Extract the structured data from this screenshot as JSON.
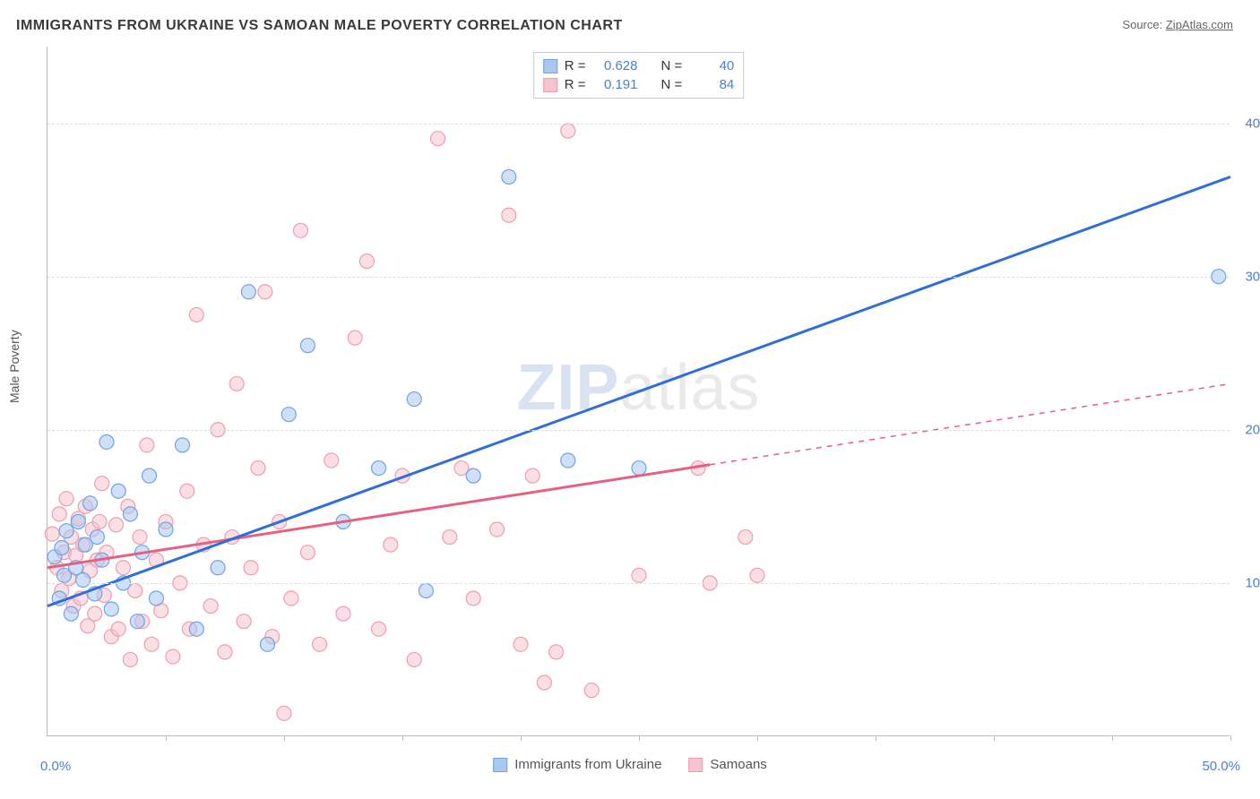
{
  "title": "IMMIGRANTS FROM UKRAINE VS SAMOAN MALE POVERTY CORRELATION CHART",
  "source_label": "Source:",
  "source_name": "ZipAtlas.com",
  "ylabel": "Male Poverty",
  "watermark_zip": "ZIP",
  "watermark_atlas": "atlas",
  "chart": {
    "type": "scatter",
    "xlim": [
      0,
      50
    ],
    "ylim": [
      0,
      45
    ],
    "x_origin_label": "0.0%",
    "x_max_label": "50.0%",
    "y_ticks": [
      {
        "v": 10,
        "label": "10.0%"
      },
      {
        "v": 20,
        "label": "20.0%"
      },
      {
        "v": 30,
        "label": "30.0%"
      },
      {
        "v": 40,
        "label": "40.0%"
      }
    ],
    "x_tick_positions": [
      5,
      10,
      15,
      20,
      25,
      30,
      35,
      40,
      45,
      50
    ],
    "background_color": "#ffffff",
    "grid_color": "#dddddd",
    "axis_color": "#bbbbbb",
    "marker_radius": 8,
    "marker_opacity": 0.55,
    "series": [
      {
        "name": "Immigrants from Ukraine",
        "color_fill": "#a9c7ef",
        "color_stroke": "#6ea3e6",
        "line_color": "#2f6fd6",
        "line_width": 3,
        "R": "0.628",
        "N": "40",
        "trend": {
          "x1": 0,
          "y1": 8.5,
          "x2": 50,
          "y2": 36.5,
          "dashed_from": null
        },
        "points": [
          [
            0.3,
            11.7
          ],
          [
            0.5,
            9.0
          ],
          [
            0.6,
            12.3
          ],
          [
            0.7,
            10.5
          ],
          [
            0.8,
            13.4
          ],
          [
            1.0,
            8.0
          ],
          [
            1.2,
            11.0
          ],
          [
            1.3,
            14.0
          ],
          [
            1.5,
            10.2
          ],
          [
            1.6,
            12.5
          ],
          [
            1.8,
            15.2
          ],
          [
            2.0,
            9.3
          ],
          [
            2.1,
            13.0
          ],
          [
            2.3,
            11.5
          ],
          [
            2.5,
            19.2
          ],
          [
            2.7,
            8.3
          ],
          [
            3.0,
            16.0
          ],
          [
            3.2,
            10.0
          ],
          [
            3.5,
            14.5
          ],
          [
            3.8,
            7.5
          ],
          [
            4.0,
            12.0
          ],
          [
            4.3,
            17.0
          ],
          [
            4.6,
            9.0
          ],
          [
            5.0,
            13.5
          ],
          [
            5.7,
            19.0
          ],
          [
            6.3,
            7.0
          ],
          [
            7.2,
            11.0
          ],
          [
            8.5,
            29.0
          ],
          [
            9.3,
            6.0
          ],
          [
            10.2,
            21.0
          ],
          [
            11.0,
            25.5
          ],
          [
            12.5,
            14.0
          ],
          [
            14.0,
            17.5
          ],
          [
            15.5,
            22.0
          ],
          [
            16.0,
            9.5
          ],
          [
            18.0,
            17.0
          ],
          [
            19.5,
            36.5
          ],
          [
            22.0,
            18.0
          ],
          [
            25.0,
            17.5
          ],
          [
            49.5,
            30.0
          ]
        ]
      },
      {
        "name": "Samoans",
        "color_fill": "#f6c4ce",
        "color_stroke": "#ef9db0",
        "line_color": "#e75f82",
        "line_width": 3,
        "R": "0.191",
        "N": "84",
        "trend": {
          "x1": 0,
          "y1": 11.0,
          "x2": 50,
          "y2": 23.0,
          "dashed_from": 28
        },
        "points": [
          [
            0.2,
            13.2
          ],
          [
            0.4,
            11.0
          ],
          [
            0.5,
            14.5
          ],
          [
            0.6,
            9.5
          ],
          [
            0.7,
            12.0
          ],
          [
            0.8,
            15.5
          ],
          [
            0.9,
            10.3
          ],
          [
            1.0,
            13.0
          ],
          [
            1.1,
            8.5
          ],
          [
            1.2,
            11.8
          ],
          [
            1.3,
            14.2
          ],
          [
            1.4,
            9.0
          ],
          [
            1.5,
            12.5
          ],
          [
            1.6,
            15.0
          ],
          [
            1.7,
            7.2
          ],
          [
            1.8,
            10.8
          ],
          [
            1.9,
            13.5
          ],
          [
            2.0,
            8.0
          ],
          [
            2.1,
            11.5
          ],
          [
            2.2,
            14.0
          ],
          [
            2.3,
            16.5
          ],
          [
            2.4,
            9.2
          ],
          [
            2.5,
            12.0
          ],
          [
            2.7,
            6.5
          ],
          [
            2.9,
            13.8
          ],
          [
            3.0,
            7.0
          ],
          [
            3.2,
            11.0
          ],
          [
            3.4,
            15.0
          ],
          [
            3.5,
            5.0
          ],
          [
            3.7,
            9.5
          ],
          [
            3.9,
            13.0
          ],
          [
            4.0,
            7.5
          ],
          [
            4.2,
            19.0
          ],
          [
            4.4,
            6.0
          ],
          [
            4.6,
            11.5
          ],
          [
            4.8,
            8.2
          ],
          [
            5.0,
            14.0
          ],
          [
            5.3,
            5.2
          ],
          [
            5.6,
            10.0
          ],
          [
            5.9,
            16.0
          ],
          [
            6.0,
            7.0
          ],
          [
            6.3,
            27.5
          ],
          [
            6.6,
            12.5
          ],
          [
            6.9,
            8.5
          ],
          [
            7.2,
            20.0
          ],
          [
            7.5,
            5.5
          ],
          [
            7.8,
            13.0
          ],
          [
            8.0,
            23.0
          ],
          [
            8.3,
            7.5
          ],
          [
            8.6,
            11.0
          ],
          [
            8.9,
            17.5
          ],
          [
            9.2,
            29.0
          ],
          [
            9.5,
            6.5
          ],
          [
            9.8,
            14.0
          ],
          [
            10.0,
            1.5
          ],
          [
            10.3,
            9.0
          ],
          [
            10.7,
            33.0
          ],
          [
            11.0,
            12.0
          ],
          [
            11.5,
            6.0
          ],
          [
            12.0,
            18.0
          ],
          [
            12.5,
            8.0
          ],
          [
            13.0,
            26.0
          ],
          [
            13.5,
            31.0
          ],
          [
            14.0,
            7.0
          ],
          [
            14.5,
            12.5
          ],
          [
            15.0,
            17.0
          ],
          [
            15.5,
            5.0
          ],
          [
            16.5,
            39.0
          ],
          [
            17.0,
            13.0
          ],
          [
            17.5,
            17.5
          ],
          [
            18.0,
            9.0
          ],
          [
            19.0,
            13.5
          ],
          [
            19.5,
            34.0
          ],
          [
            20.0,
            6.0
          ],
          [
            20.5,
            17.0
          ],
          [
            21.0,
            3.5
          ],
          [
            21.5,
            5.5
          ],
          [
            22.0,
            39.5
          ],
          [
            23.0,
            3.0
          ],
          [
            25.0,
            10.5
          ],
          [
            27.5,
            17.5
          ],
          [
            28.0,
            10.0
          ],
          [
            29.5,
            13.0
          ],
          [
            30.0,
            10.5
          ]
        ]
      }
    ]
  },
  "legend": {
    "r_label": "R =",
    "n_label": "N ="
  }
}
